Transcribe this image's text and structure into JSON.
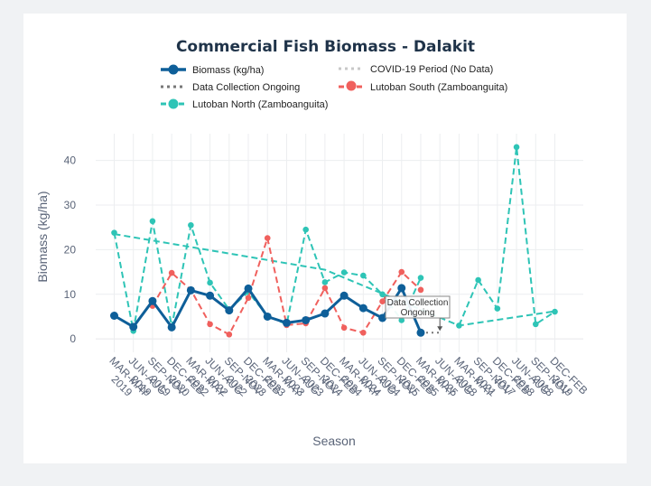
{
  "chart_data": {
    "type": "line",
    "title": "Commercial Fish Biomass - Dalakit",
    "xlabel": "Season",
    "ylabel": "Biomass (kg/ha)",
    "ylim": [
      -3,
      46
    ],
    "yticks": [
      0,
      10,
      20,
      30,
      40
    ],
    "grid": true,
    "legend_position": "top",
    "categories": [
      "MAR-MAY 2019",
      "JUN-AUG 2019",
      "SEP-NOV 2019",
      "DEC-FEB 2020",
      "MAR-MAY 2022",
      "JUN-AUG 2022",
      "SEP-NOV 2022",
      "DEC-FEB 2023",
      "MAR-MAY 2023",
      "JUN-AUG 2023",
      "SEP-NOV 2023",
      "DEC-FEB 2024",
      "MAR-MAY 2024",
      "JUN-AUG 2024",
      "SEP-NOV 2024",
      "DEC-FEB 2025",
      "MAR-MAY 2025",
      "JUN-AUG 2025",
      "MAR-MAY 2018",
      "SEP-NOV 2021",
      "DEC-FEB 2017",
      "JUN-AUG 2018",
      "SEP-NOV 2018",
      "DEC-FEB 2019"
    ],
    "series": [
      {
        "name": "Biomass (kg/ha)",
        "color": "#0e5f99",
        "dash": "solid",
        "values": [
          5.2,
          2.7,
          8.5,
          2.6,
          10.9,
          9.7,
          6.4,
          11.3,
          5.0,
          3.6,
          4.2,
          5.7,
          9.7,
          6.9,
          4.7,
          11.4,
          1.4,
          null,
          null,
          null,
          null,
          null,
          null,
          null
        ]
      },
      {
        "name": "COVID-19 Period (No Data)",
        "color": "#c8c8c8",
        "dash": "dot",
        "values": [
          null,
          null,
          null,
          2.6,
          10.9,
          null,
          null,
          null,
          null,
          null,
          null,
          null,
          null,
          null,
          null,
          null,
          null,
          null,
          null,
          null,
          null,
          null,
          null,
          null
        ]
      },
      {
        "name": "Data Collection Ongoing",
        "color": "#777777",
        "dash": "dot",
        "values": [
          null,
          null,
          null,
          null,
          null,
          null,
          null,
          null,
          null,
          null,
          null,
          null,
          null,
          null,
          null,
          null,
          1.4,
          1.4,
          null,
          null,
          null,
          null,
          null,
          null
        ]
      },
      {
        "name": "Lutoban South (Zamboanguita)",
        "color": "#f0605d",
        "dash": "dash",
        "values": [
          null,
          null,
          7.4,
          14.8,
          11.0,
          3.3,
          1.0,
          9.2,
          22.6,
          3.1,
          3.5,
          11.4,
          2.5,
          1.4,
          8.4,
          15.0,
          11.0,
          null,
          null,
          null,
          null,
          null,
          null,
          null
        ]
      },
      {
        "name": "Lutoban North (Zamboanguita)",
        "color": "#2ec4b6",
        "dash": "dash",
        "values": [
          23.8,
          1.8,
          26.4,
          2.7,
          25.5,
          12.6,
          6.6,
          10.5,
          5.1,
          3.3,
          24.5,
          12.7,
          14.9,
          14.2,
          10.0,
          4.2,
          13.7,
          null,
          3.0,
          13.2,
          6.8,
          43.0,
          3.3,
          6.1
        ]
      }
    ],
    "covid_points": [
      [
        3,
        2.6
      ],
      [
        4,
        10.9
      ]
    ],
    "north_trend": [
      [
        0,
        23.5
      ],
      [
        11,
        15.5
      ],
      [
        18,
        3.0
      ],
      [
        23,
        6.2
      ]
    ],
    "annotation": {
      "text": [
        "Data Collection",
        "Ongoing"
      ],
      "index": 17,
      "value": 1.4
    }
  },
  "legend": {
    "biomass": "Biomass (kg/ha)",
    "covid": "COVID-19 Period (No Data)",
    "ongoing": "Data Collection Ongoing",
    "south": "Lutoban South (Zamboanguita)",
    "north": "Lutoban North (Zamboanguita)"
  }
}
